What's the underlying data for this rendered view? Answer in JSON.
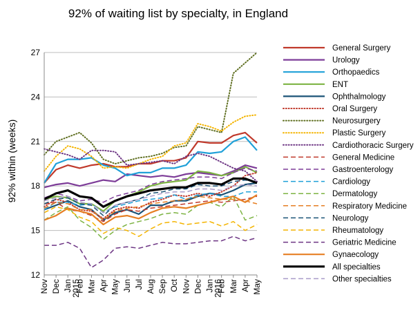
{
  "chart_data": {
    "type": "line",
    "title": "92% of waiting list by specialty, in England",
    "ylabel": "92% within (weeks)",
    "xlabel": "",
    "ylim": [
      12,
      27
    ],
    "yticks": [
      12,
      15,
      18,
      21,
      24,
      27
    ],
    "grid": "horizontal",
    "legend": "right",
    "x_tick_labels": [
      "Nov",
      "Dec",
      "Jan",
      "Feb",
      "Mar",
      "Apr",
      "May",
      "Jun",
      "Jul",
      "Aug",
      "Sep",
      "Oct",
      "Nov",
      "Dec",
      "Jan",
      "Feb",
      "Mar",
      "Apr",
      "May"
    ],
    "year_labels": [
      {
        "index": 2,
        "label": "2015"
      },
      {
        "index": 14,
        "label": "2016"
      }
    ],
    "series": [
      {
        "name": "General Surgery",
        "color": "#c0392b",
        "dash": "solid",
        "width": 2.2,
        "values": [
          18.2,
          19.1,
          19.4,
          19.2,
          19.4,
          19.5,
          19.3,
          19.3,
          19.5,
          19.5,
          19.7,
          19.7,
          19.9,
          21.0,
          20.9,
          20.9,
          21.4,
          21.6,
          20.9
        ]
      },
      {
        "name": "Urology",
        "color": "#7d3c98",
        "dash": "solid",
        "width": 2.2,
        "values": [
          17.9,
          18.1,
          18.2,
          18.0,
          18.2,
          18.4,
          18.3,
          18.8,
          18.7,
          18.6,
          18.7,
          18.6,
          18.8,
          18.9,
          18.8,
          18.7,
          19.0,
          19.4,
          19.2
        ]
      },
      {
        "name": "Orthopaedics",
        "color": "#1fa0d8",
        "dash": "solid",
        "width": 2.2,
        "values": [
          18.2,
          19.5,
          19.8,
          19.8,
          19.9,
          19.4,
          19.2,
          18.7,
          18.9,
          18.9,
          19.2,
          19.2,
          19.4,
          20.3,
          20.2,
          20.3,
          21.0,
          21.3,
          20.4
        ]
      },
      {
        "name": "ENT",
        "color": "#7cb342",
        "dash": "solid",
        "width": 2.2,
        "values": [
          17.1,
          17.3,
          17.2,
          16.8,
          16.8,
          16.3,
          17.0,
          17.3,
          17.6,
          18.0,
          18.2,
          18.3,
          18.4,
          19.0,
          18.9,
          18.7,
          18.9,
          19.3,
          18.9
        ]
      },
      {
        "name": "Ophthalmology",
        "color": "#1a5276",
        "dash": "solid",
        "width": 2.2,
        "values": [
          16.4,
          16.7,
          17.0,
          16.6,
          16.4,
          15.7,
          16.2,
          16.4,
          16.1,
          16.7,
          16.7,
          17.0,
          17.0,
          17.3,
          17.5,
          17.4,
          17.7,
          18.1,
          18.2
        ]
      },
      {
        "name": "Oral Surgery",
        "color": "#c0392b",
        "dash": "dot",
        "width": 2.0,
        "values": [
          16.6,
          17.1,
          16.9,
          16.4,
          16.3,
          15.8,
          16.4,
          16.6,
          16.5,
          16.9,
          17.1,
          17.4,
          17.3,
          17.5,
          17.3,
          17.6,
          18.0,
          18.7,
          18.9
        ]
      },
      {
        "name": "Neurosurgery",
        "color": "#5d6d1e",
        "dash": "dot",
        "width": 2.0,
        "values": [
          20.1,
          21.0,
          21.3,
          21.6,
          20.9,
          19.8,
          19.5,
          19.7,
          19.9,
          20.0,
          20.2,
          20.6,
          20.7,
          22.0,
          21.8,
          21.6,
          25.6,
          26.3,
          27.0
        ]
      },
      {
        "name": "Plastic Surgery",
        "color": "#f4b400",
        "dash": "dot",
        "width": 2.0,
        "values": [
          19.0,
          20.0,
          20.7,
          20.5,
          20.0,
          19.2,
          19.3,
          19.2,
          19.5,
          19.8,
          20.0,
          20.7,
          20.9,
          22.2,
          22.0,
          21.7,
          22.3,
          22.7,
          22.8
        ]
      },
      {
        "name": "Cardiothoracic Surgery",
        "color": "#6c3483",
        "dash": "dot",
        "width": 2.0,
        "values": [
          20.5,
          20.3,
          20.1,
          19.8,
          20.4,
          20.4,
          20.3,
          19.4,
          19.5,
          19.6,
          19.7,
          19.5,
          20.0,
          20.2,
          20.0,
          19.6,
          19.2,
          19.0,
          18.3
        ]
      },
      {
        "name": "General Medicine",
        "color": "#c0392b",
        "dash": "dash",
        "width": 1.5,
        "values": [
          16.8,
          16.9,
          16.4,
          16.3,
          16.0,
          15.6,
          16.1,
          16.4,
          16.3,
          16.5,
          16.6,
          16.7,
          16.8,
          16.9,
          17.0,
          16.9,
          17.0,
          17.1,
          17.3
        ]
      },
      {
        "name": "Gastroenterology",
        "color": "#7d3c98",
        "dash": "dash",
        "width": 1.5,
        "values": [
          17.2,
          17.5,
          17.3,
          17.0,
          17.1,
          16.9,
          17.3,
          17.5,
          17.7,
          18.1,
          18.3,
          18.4,
          18.5,
          18.6,
          18.6,
          18.5,
          18.9,
          19.2,
          19.0
        ]
      },
      {
        "name": "Cardiology",
        "color": "#1fa0d8",
        "dash": "dash",
        "width": 1.5,
        "values": [
          16.4,
          16.9,
          16.9,
          16.7,
          16.8,
          16.2,
          16.6,
          16.8,
          17.0,
          17.1,
          17.2,
          17.4,
          17.1,
          17.4,
          17.5,
          17.3,
          17.3,
          17.6,
          17.6
        ]
      },
      {
        "name": "Dermatology",
        "color": "#7cb342",
        "dash": "dash",
        "width": 1.5,
        "values": [
          15.7,
          16.2,
          16.6,
          15.7,
          15.2,
          14.4,
          15.0,
          15.4,
          15.6,
          15.8,
          16.1,
          16.2,
          16.1,
          16.7,
          16.9,
          16.6,
          17.3,
          15.7,
          16.0
        ]
      },
      {
        "name": "Respiratory Medicine",
        "color": "#e67e22",
        "dash": "dash",
        "width": 1.5,
        "values": [
          16.5,
          16.9,
          16.8,
          16.4,
          16.4,
          15.7,
          16.3,
          16.5,
          16.6,
          16.8,
          16.9,
          17.0,
          17.1,
          17.3,
          17.2,
          17.1,
          17.1,
          17.0,
          16.8
        ]
      },
      {
        "name": "Neurology",
        "color": "#1a5276",
        "dash": "dash",
        "width": 1.5,
        "values": [
          16.8,
          17.1,
          17.2,
          16.8,
          16.7,
          16.0,
          16.7,
          16.9,
          17.1,
          17.5,
          17.6,
          17.8,
          17.8,
          18.1,
          18.0,
          18.0,
          18.3,
          18.4,
          18.3
        ]
      },
      {
        "name": "Rheumatology",
        "color": "#f4b400",
        "dash": "dash",
        "width": 1.5,
        "values": [
          16.2,
          16.6,
          16.4,
          15.9,
          15.6,
          14.8,
          15.2,
          15.0,
          14.6,
          15.1,
          15.5,
          15.6,
          15.4,
          15.5,
          15.6,
          15.3,
          15.6,
          15.0,
          15.4
        ]
      },
      {
        "name": "Geriatric Medicine",
        "color": "#6c3483",
        "dash": "dash",
        "width": 1.5,
        "values": [
          14.0,
          14.0,
          14.2,
          13.8,
          12.5,
          13.0,
          13.8,
          13.9,
          13.8,
          14.0,
          14.2,
          14.1,
          14.1,
          14.2,
          14.3,
          14.3,
          14.6,
          14.3,
          14.5
        ]
      },
      {
        "name": "Gynaecology",
        "color": "#e67e22",
        "dash": "solid",
        "width": 2.2,
        "values": [
          15.7,
          16.0,
          16.5,
          16.3,
          16.1,
          15.4,
          15.9,
          16.0,
          15.8,
          16.2,
          16.5,
          16.6,
          16.5,
          16.7,
          16.9,
          17.1,
          17.3,
          16.9,
          17.4
        ]
      },
      {
        "name": "All specialties",
        "color": "#000000",
        "dash": "solid",
        "width": 3.2,
        "values": [
          17.1,
          17.5,
          17.7,
          17.3,
          17.2,
          16.6,
          17.0,
          17.3,
          17.5,
          17.7,
          17.8,
          17.9,
          17.9,
          18.2,
          18.2,
          18.1,
          18.5,
          18.5,
          18.2
        ]
      },
      {
        "name": "Other specialties",
        "color": "#a99bc9",
        "dash": "dash",
        "width": 1.5,
        "values": [
          17.0,
          17.2,
          17.3,
          16.9,
          16.8,
          16.2,
          16.7,
          16.9,
          17.1,
          17.3,
          17.5,
          17.6,
          17.6,
          17.8,
          17.8,
          17.7,
          18.0,
          18.1,
          18.0
        ]
      }
    ]
  }
}
